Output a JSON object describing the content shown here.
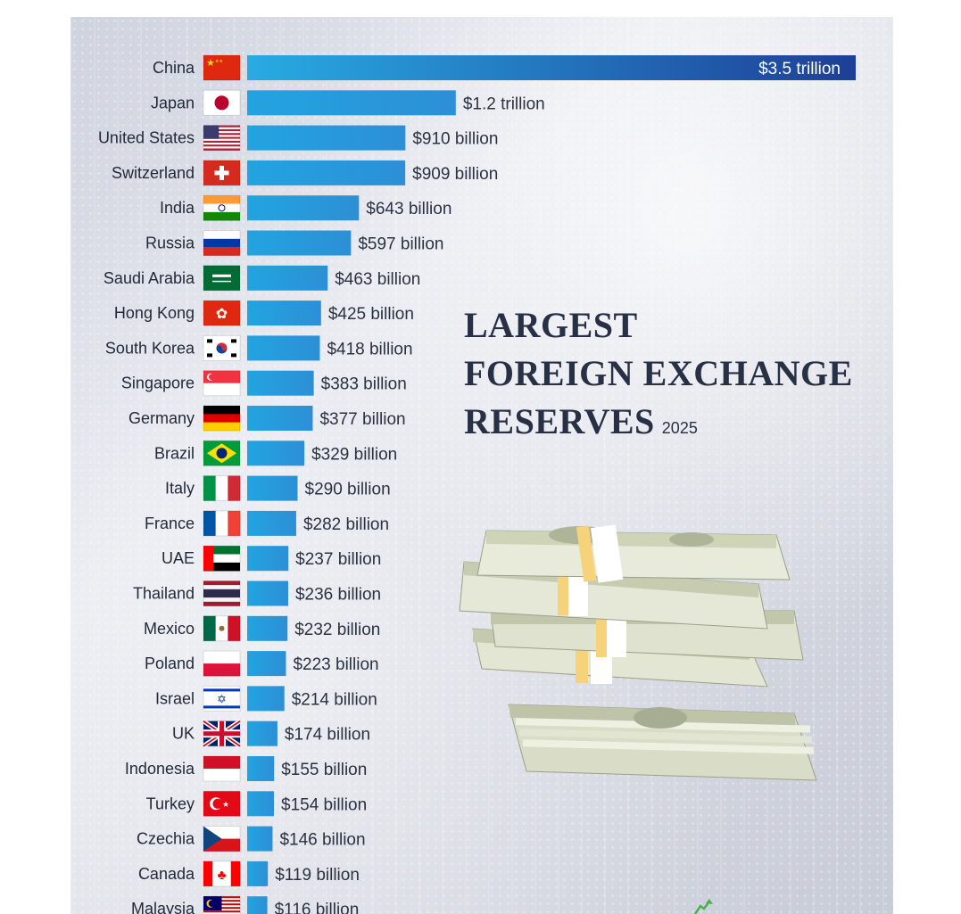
{
  "chart_data": {
    "type": "bar",
    "orientation": "horizontal",
    "title": "LARGEST FOREIGN EXCHANGE RESERVES",
    "title_lines": [
      "LARGEST",
      "FOREIGN EXCHANGE",
      "RESERVES"
    ],
    "subtitle": "2025",
    "xlim": [
      0,
      3500
    ],
    "unit": "USD billion",
    "grid": false,
    "legend": "none",
    "categories": [
      "China",
      "Japan",
      "United States",
      "Switzerland",
      "India",
      "Russia",
      "Saudi Arabia",
      "Hong Kong",
      "South Korea",
      "Singapore",
      "Germany",
      "Brazil",
      "Italy",
      "France",
      "UAE",
      "Thailand",
      "Mexico",
      "Poland",
      "Israel",
      "UK",
      "Indonesia",
      "Turkey",
      "Czechia",
      "Canada",
      "Malaysia"
    ],
    "values": [
      3500,
      1200,
      910,
      909,
      643,
      597,
      463,
      425,
      418,
      383,
      377,
      329,
      290,
      282,
      237,
      236,
      232,
      223,
      214,
      174,
      155,
      154,
      146,
      119,
      116
    ],
    "value_labels": [
      "$3.5 trillion",
      "$1.2 trillion",
      "$910 billion",
      "$909 billion",
      "$643 billion",
      "$597 billion",
      "$463 billion",
      "$425 billion",
      "$418 billion",
      "$383 billion",
      "$377 billion",
      "$329 billion",
      "$290 billion",
      "$282 billion",
      "$237 billion",
      "$236 billion",
      "$232 billion",
      "$223 billion",
      "$214 billion",
      "$174 billion",
      "$155 billion",
      "$154 billion",
      "$146 billion",
      "$119 billion",
      "$116 billion"
    ],
    "flag_icons": [
      "china-flag-icon",
      "japan-flag-icon",
      "usa-flag-icon",
      "switzerland-flag-icon",
      "india-flag-icon",
      "russia-flag-icon",
      "saudi-arabia-flag-icon",
      "hong-kong-flag-icon",
      "south-korea-flag-icon",
      "singapore-flag-icon",
      "germany-flag-icon",
      "brazil-flag-icon",
      "italy-flag-icon",
      "france-flag-icon",
      "uae-flag-icon",
      "thailand-flag-icon",
      "mexico-flag-icon",
      "poland-flag-icon",
      "israel-flag-icon",
      "uk-flag-icon",
      "indonesia-flag-icon",
      "turkey-flag-icon",
      "czechia-flag-icon",
      "canada-flag-icon",
      "malaysia-flag-icon"
    ]
  },
  "colors": {
    "bar_light": "#29ABE2",
    "bar_dark": "#1E3F97",
    "label_text": "#222a3a",
    "title_text": "#273044"
  },
  "decorations": [
    "stacked-dollar-bills-icon",
    "growth-arrow-icon"
  ]
}
